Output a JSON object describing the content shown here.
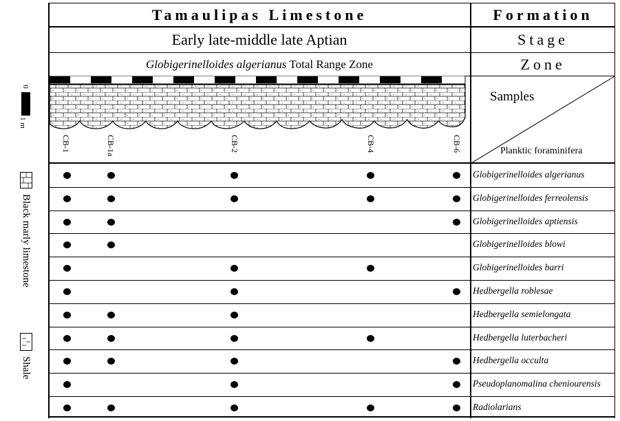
{
  "header": {
    "formation_value": "Tamaulipas Limestone",
    "formation_label": "Formation",
    "stage_value": "Early late-middle late Aptian",
    "stage_label": "Stage",
    "zone_value_italic": "Globigerinelloides algerianus",
    "zone_value_rest": " Total Range Zone",
    "zone_label": "Zone",
    "samples_label": "Samples",
    "taxa_label": "Planktic foraminifera"
  },
  "scale": {
    "top": "0",
    "bottom": "1 m"
  },
  "legend": [
    {
      "label": "Black marly limestone"
    },
    {
      "label": "Shale"
    }
  ],
  "samples": [
    "CB-1",
    "CB-1a",
    "CB-2",
    "CB-4",
    "CB-6"
  ],
  "taxa": [
    {
      "name": "Globigerinelloides algerianus",
      "present": [
        1,
        1,
        1,
        1,
        1
      ]
    },
    {
      "name": "Globigerinelloides ferreolensis",
      "present": [
        1,
        1,
        1,
        1,
        1
      ]
    },
    {
      "name": "Globigerinelloides aptiensis",
      "present": [
        1,
        1,
        0,
        0,
        1
      ]
    },
    {
      "name": "Globigerinelloides blowi",
      "present": [
        1,
        1,
        0,
        0,
        0
      ]
    },
    {
      "name": "Globigerinelloides barri",
      "present": [
        1,
        0,
        1,
        1,
        0
      ]
    },
    {
      "name": "Hedbergella roblesae",
      "present": [
        1,
        0,
        1,
        0,
        1
      ]
    },
    {
      "name": "Hedbergella semielongata",
      "present": [
        1,
        1,
        1,
        0,
        0
      ]
    },
    {
      "name": "Hedbergella luterbacheri",
      "present": [
        1,
        1,
        1,
        1,
        0
      ]
    },
    {
      "name": "Hedbergella occulta",
      "present": [
        1,
        1,
        1,
        0,
        1
      ]
    },
    {
      "name": "Pseudoplanomalina cheniourensis",
      "present": [
        1,
        0,
        1,
        0,
        1
      ]
    },
    {
      "name": "Radiolarians",
      "present": [
        1,
        1,
        1,
        1,
        1
      ]
    }
  ],
  "colors": {
    "ink": "#000000",
    "background": "#ffffff"
  }
}
